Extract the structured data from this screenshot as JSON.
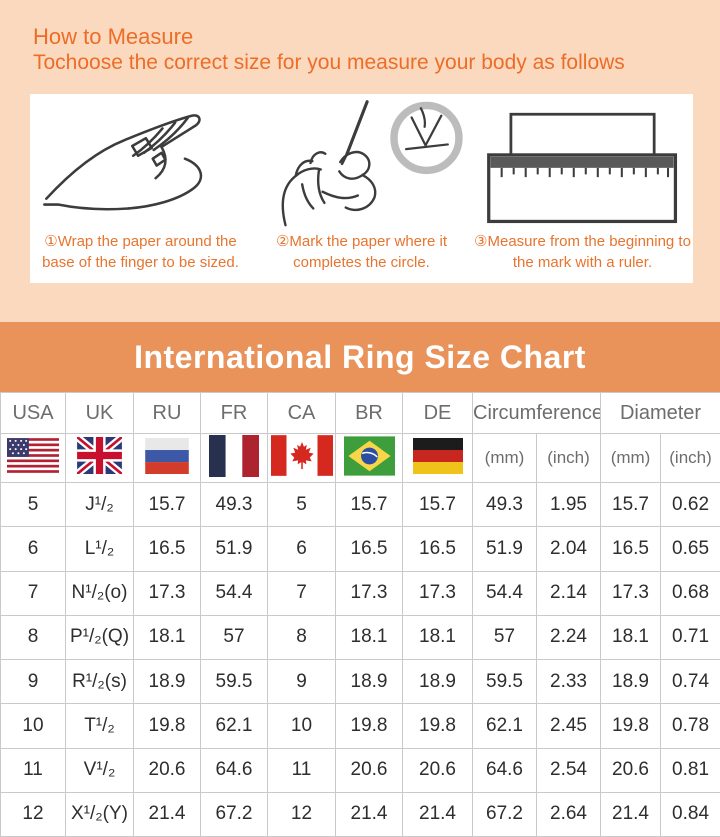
{
  "colors": {
    "page_bg": "#fbd9be",
    "panel_bg": "#ffffff",
    "title_orange": "#ed6d28",
    "caption_orange": "#e8742e",
    "banner_bg": "#e9935b",
    "banner_text": "#ffffff",
    "grid_line": "#c9c9c9",
    "header_text": "#6d6d6d",
    "cell_text": "#2e2e2e",
    "line_art": "#3c3c3c",
    "magnifier_gray": "#bcbcbc"
  },
  "header": {
    "title_line1": "How to Measure",
    "title_line2": "Tochoose the correct size for you measure your body as follows"
  },
  "steps": [
    {
      "icon": "hand-wrap-illustration",
      "line1": "①Wrap the paper around the",
      "line2": "base of the finger to be sized."
    },
    {
      "icon": "mark-paper-illustration",
      "line1": "②Mark the paper where it",
      "line2": "completes the circle."
    },
    {
      "icon": "ruler-illustration",
      "line1": "③Measure from the beginning to",
      "line2": "the mark with a ruler."
    }
  ],
  "banner": {
    "title": "International Ring Size Chart"
  },
  "table": {
    "country_columns": [
      {
        "code": "USA",
        "flag": "flag-usa"
      },
      {
        "code": "UK",
        "flag": "flag-uk"
      },
      {
        "code": "RU",
        "flag": "flag-russia"
      },
      {
        "code": "FR",
        "flag": "flag-france"
      },
      {
        "code": "CA",
        "flag": "flag-canada"
      },
      {
        "code": "BR",
        "flag": "flag-brazil"
      },
      {
        "code": "DE",
        "flag": "flag-germany"
      }
    ],
    "group_columns": [
      {
        "label": "Circumference",
        "sub": [
          "(mm)",
          "(inch)"
        ]
      },
      {
        "label": "Diameter",
        "sub": [
          "(mm)",
          "(inch)"
        ]
      }
    ],
    "rows": [
      [
        "5",
        "J¹/₂",
        "15.7",
        "49.3",
        "5",
        "15.7",
        "15.7",
        "49.3",
        "1.95",
        "15.7",
        "0.62"
      ],
      [
        "6",
        "L¹/₂",
        "16.5",
        "51.9",
        "6",
        "16.5",
        "16.5",
        "51.9",
        "2.04",
        "16.5",
        "0.65"
      ],
      [
        "7",
        "N¹/₂(o)",
        "17.3",
        "54.4",
        "7",
        "17.3",
        "17.3",
        "54.4",
        "2.14",
        "17.3",
        "0.68"
      ],
      [
        "8",
        "P¹/₂(Q)",
        "18.1",
        "57",
        "8",
        "18.1",
        "18.1",
        "57",
        "2.24",
        "18.1",
        "0.71"
      ],
      [
        "9",
        "R¹/₂(s)",
        "18.9",
        "59.5",
        "9",
        "18.9",
        "18.9",
        "59.5",
        "2.33",
        "18.9",
        "0.74"
      ],
      [
        "10",
        "T¹/₂",
        "19.8",
        "62.1",
        "10",
        "19.8",
        "19.8",
        "62.1",
        "2.45",
        "19.8",
        "0.78"
      ],
      [
        "11",
        "V¹/₂",
        "20.6",
        "64.6",
        "11",
        "20.6",
        "20.6",
        "64.6",
        "2.54",
        "20.6",
        "0.81"
      ],
      [
        "12",
        "X¹/₂(Y)",
        "21.4",
        "67.2",
        "12",
        "21.4",
        "21.4",
        "67.2",
        "2.64",
        "21.4",
        "0.84"
      ]
    ]
  }
}
